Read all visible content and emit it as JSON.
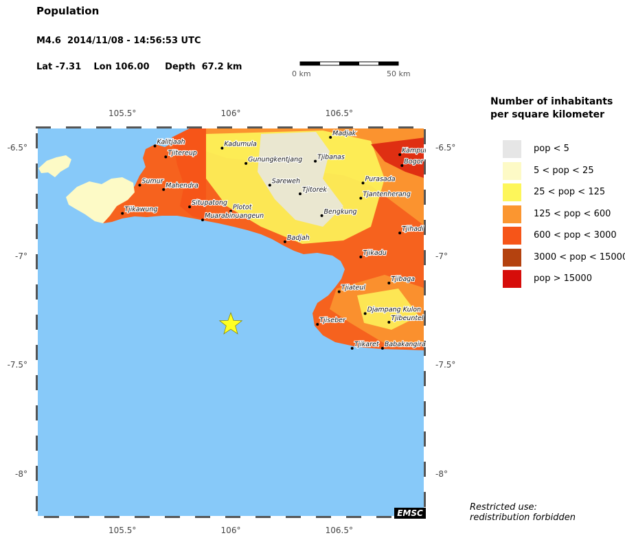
{
  "header": {
    "title": "Population",
    "event": "M4.6  2014/11/08 - 14:56:53 UTC",
    "coords": "Lat -7.31    Lon 106.00     Depth  67.2 km"
  },
  "scale_bar": {
    "start_label": "0 km",
    "end_label": "50 km"
  },
  "map": {
    "lon_range": [
      105.1,
      106.9
    ],
    "lat_range": [
      -8.2,
      -6.4
    ],
    "sea_color": "#87c9f9",
    "epicenter": {
      "lat": -7.31,
      "lon": 106.0,
      "marker": "star-icon",
      "color": "#ffff22"
    },
    "ticks": {
      "lon": [
        {
          "value": 105.5,
          "label": "105.5°"
        },
        {
          "value": 106.0,
          "label": "106°"
        },
        {
          "value": 106.5,
          "label": "106.5°"
        }
      ],
      "lat": [
        {
          "value": -6.5,
          "label": "-6.5°"
        },
        {
          "value": -7.0,
          "label": "-7°"
        },
        {
          "value": -7.5,
          "label": "-7.5°"
        },
        {
          "value": -8.0,
          "label": "-8°"
        }
      ]
    },
    "cities": [
      {
        "name": "Kalitjaah",
        "lon": 105.65,
        "lat": -6.49
      },
      {
        "name": "Tjitereup",
        "lon": 105.7,
        "lat": -6.54
      },
      {
        "name": "Kadumula",
        "lon": 105.96,
        "lat": -6.5
      },
      {
        "name": "Madjak",
        "lon": 106.46,
        "lat": -6.45
      },
      {
        "name": "Gunungkentjang",
        "lon": 106.07,
        "lat": -6.57
      },
      {
        "name": "Tjibanas",
        "lon": 106.39,
        "lat": -6.56
      },
      {
        "name": "Kampungpaseh",
        "lon": 106.78,
        "lat": -6.53
      },
      {
        "name": "Bogor",
        "lon": 106.79,
        "lat": -6.58
      },
      {
        "name": "Sumur",
        "lon": 105.58,
        "lat": -6.67
      },
      {
        "name": "Mahendra",
        "lon": 105.69,
        "lat": -6.69
      },
      {
        "name": "Sareweh",
        "lon": 106.18,
        "lat": -6.67
      },
      {
        "name": "Purasada",
        "lon": 106.61,
        "lat": -6.66
      },
      {
        "name": "Tjitorek",
        "lon": 106.32,
        "lat": -6.71
      },
      {
        "name": "Tjantenherang",
        "lon": 106.6,
        "lat": -6.73
      },
      {
        "name": "Tjikawung",
        "lon": 105.5,
        "lat": -6.8
      },
      {
        "name": "Situpatong",
        "lon": 105.81,
        "lat": -6.77
      },
      {
        "name": "Plotot",
        "lon": 106.0,
        "lat": -6.79
      },
      {
        "name": "Muarabinuangeun",
        "lon": 105.87,
        "lat": -6.83
      },
      {
        "name": "Bengkung",
        "lon": 106.42,
        "lat": -6.81
      },
      {
        "name": "Tjihadi",
        "lon": 106.78,
        "lat": -6.89
      },
      {
        "name": "Badjah",
        "lon": 106.25,
        "lat": -6.93
      },
      {
        "name": "Tjikadu",
        "lon": 106.6,
        "lat": -7.0
      },
      {
        "name": "Tjibaga",
        "lon": 106.73,
        "lat": -7.12
      },
      {
        "name": "Tjiateul",
        "lon": 106.5,
        "lat": -7.16
      },
      {
        "name": "Djampang Kulon",
        "lon": 106.62,
        "lat": -7.26
      },
      {
        "name": "Tjiseber",
        "lon": 106.4,
        "lat": -7.31
      },
      {
        "name": "Tjibeuntel",
        "lon": 106.73,
        "lat": -7.3
      },
      {
        "name": "Tjikaret",
        "lon": 106.56,
        "lat": -7.42
      },
      {
        "name": "Babakangirang",
        "lon": 106.7,
        "lat": -7.42
      }
    ]
  },
  "legend": {
    "title": "Number of inhabitants per square kilometer",
    "items": [
      {
        "label": "pop < 5",
        "color": "#e6e6e6"
      },
      {
        "label": "5 < pop < 25",
        "color": "#fdfac6"
      },
      {
        "label": "25 < pop < 125",
        "color": "#fdf65a"
      },
      {
        "label": "125 < pop < 600",
        "color": "#fb9630"
      },
      {
        "label": "600 < pop < 3000",
        "color": "#f65518"
      },
      {
        "label": "3000 < pop < 15000",
        "color": "#b4420f"
      },
      {
        "label": "pop > 15000",
        "color": "#d60d0a"
      }
    ]
  },
  "notice": {
    "line1": "Restricted use:",
    "line2": "redistribution forbidden"
  },
  "badge": "EMSC"
}
